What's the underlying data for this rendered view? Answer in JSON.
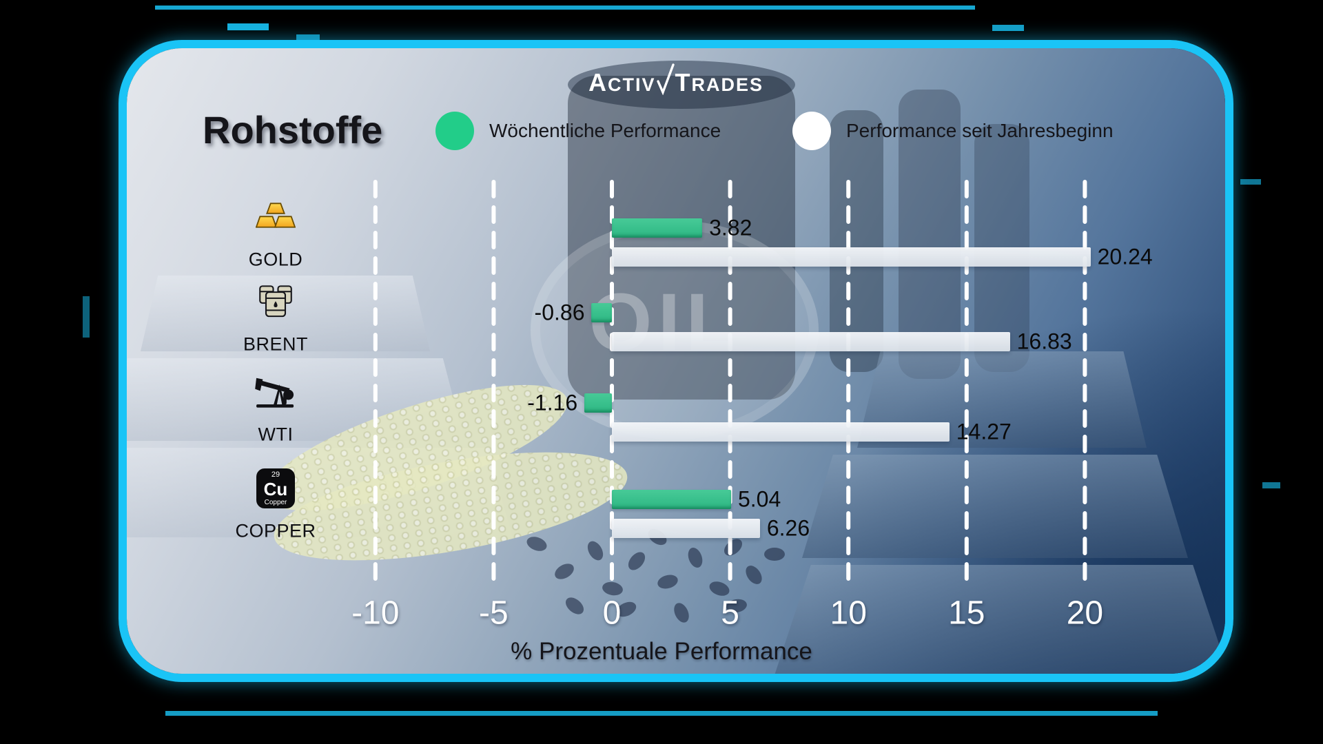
{
  "brand": {
    "logo_part1": "Activ",
    "logo_part2": "Trades"
  },
  "header": {
    "title": "Rohstoffe"
  },
  "legend": [
    {
      "label": "Wöchentliche Performance",
      "color": "#22cd89"
    },
    {
      "label": "Performance seit Jahresbeginn",
      "color": "#ffffff"
    }
  ],
  "watermark": {
    "oil": "OIL"
  },
  "copper_icon": {
    "number": "29",
    "symbol": "Cu",
    "name": "Copper"
  },
  "chart_data": {
    "type": "bar",
    "orientation": "horizontal",
    "categories": [
      "GOLD",
      "BRENT",
      "WTI",
      "COPPER"
    ],
    "icons": [
      "gold-bars",
      "oil-barrels",
      "oil-pumpjack",
      "copper-element"
    ],
    "series": [
      {
        "name": "Wöchentliche Performance",
        "color": "#2fc48e",
        "values": [
          3.82,
          -0.86,
          -1.16,
          5.04
        ]
      },
      {
        "name": "Performance seit Jahresbeginn",
        "color": "#e9edf3",
        "values": [
          20.24,
          16.83,
          14.27,
          6.26
        ]
      }
    ],
    "value_labels": [
      [
        "3.82",
        "-0.86",
        "-1.16",
        "5.04"
      ],
      [
        "20.24",
        "16.83",
        "14.27",
        "6.26"
      ]
    ],
    "xticks": [
      -10,
      -5,
      0,
      5,
      10,
      15,
      20
    ],
    "xlabel": "% Prozentuale Performance",
    "xlim": [
      -12,
      23
    ],
    "grid": "vertical-dashed-white",
    "legend_position": "top"
  }
}
